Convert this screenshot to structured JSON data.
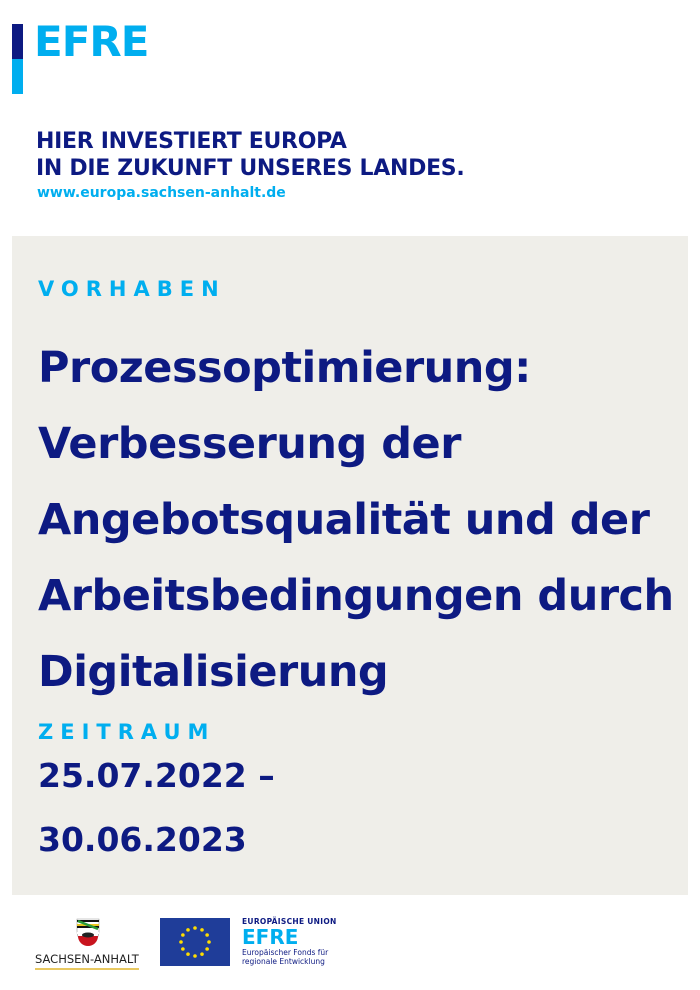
{
  "header": {
    "logo_text": "EFRE",
    "slogan_line1": "HIER INVESTIERT EUROPA",
    "slogan_line2": "IN DIE ZUKUNFT UNSERES LANDES.",
    "url": "www.europa.sachsen-anhalt.de"
  },
  "project": {
    "label": "VORHABEN",
    "title": "Prozessoptimierung: Verbesserung der Angebotsqualität und der Arbeitsbedingungen durch Digitalisierung",
    "period_label": "ZEITRAUM",
    "date_start": "25.07.2022 –",
    "date_end": "30.06.2023"
  },
  "footer": {
    "state_name": "SACHSEN-ANHALT",
    "eu_union": "EUROPÄISCHE UNION",
    "eu_efre": "EFRE",
    "eu_sub_line1": "Europäischer Fonds für",
    "eu_sub_line2": "regionale Entwicklung"
  },
  "colors": {
    "navy": "#0d1a82",
    "light_blue": "#00aeef",
    "panel": "#efeee9"
  }
}
